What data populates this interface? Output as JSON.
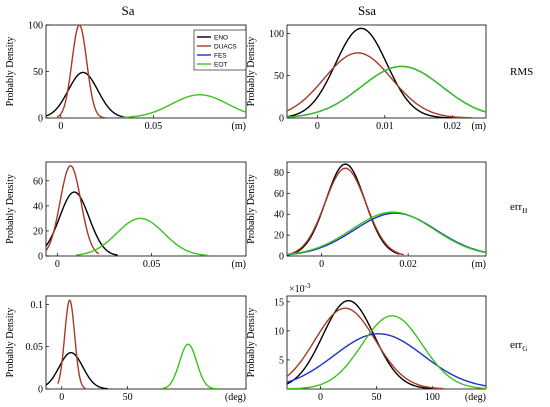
{
  "figure": {
    "col_titles": [
      "Sa",
      "Ssa"
    ],
    "row_labels": [
      {
        "main": "RMS",
        "sub": ""
      },
      {
        "main": "err",
        "sub": "H"
      },
      {
        "main": "err",
        "sub": "G"
      }
    ],
    "y_label": "Probably  Density"
  },
  "colors": {
    "ENO": "#000000",
    "DUACS": "#a83a24",
    "FES": "#1f2fd0",
    "EOT": "#38c41c"
  },
  "chart_data": [
    {
      "id": "sa-rms",
      "type": "line",
      "row": 0,
      "col": 0,
      "xunit": "(m)",
      "xlim": [
        -0.008,
        0.1
      ],
      "ylim": [
        0,
        100
      ],
      "xticks": [
        {
          "v": 0,
          "label": "0"
        },
        {
          "v": 0.05,
          "label": "0.05"
        }
      ],
      "yticks": [
        {
          "v": 0,
          "label": "0"
        },
        {
          "v": 50,
          "label": "50"
        },
        {
          "v": 100,
          "label": "100"
        }
      ],
      "legend": {
        "position": "top-right",
        "entries": [
          "ENO",
          "DUACS",
          "FES",
          "EOT"
        ]
      },
      "series": [
        {
          "name": "ENO",
          "mu": 0.012,
          "sigma": 0.008,
          "peak": 49,
          "range": [
            -0.008,
            0.035
          ]
        },
        {
          "name": "DUACS",
          "mu": 0.01,
          "sigma": 0.004,
          "peak": 100,
          "range": [
            -0.002,
            0.024
          ]
        },
        {
          "name": "EOT",
          "mu": 0.075,
          "sigma": 0.015,
          "peak": 25,
          "range": [
            0.03,
            0.1
          ]
        }
      ]
    },
    {
      "id": "ssa-rms",
      "type": "line",
      "row": 0,
      "col": 1,
      "xunit": "(m)",
      "xlim": [
        -0.0045,
        0.025
      ],
      "ylim": [
        0,
        110
      ],
      "xticks": [
        {
          "v": 0,
          "label": "0"
        },
        {
          "v": 0.01,
          "label": "0.01"
        },
        {
          "v": 0.02,
          "label": "0.02"
        }
      ],
      "yticks": [
        {
          "v": 0,
          "label": "0"
        },
        {
          "v": 50,
          "label": "50"
        },
        {
          "v": 100,
          "label": "100"
        }
      ],
      "series": [
        {
          "name": "ENO",
          "mu": 0.0065,
          "sigma": 0.0038,
          "peak": 106,
          "range": [
            -0.0045,
            0.02
          ]
        },
        {
          "name": "DUACS",
          "mu": 0.006,
          "sigma": 0.005,
          "peak": 77,
          "range": [
            -0.0045,
            0.023
          ]
        },
        {
          "name": "FES",
          "mu": 0.0125,
          "sigma": 0.006,
          "peak": 61,
          "range": [
            -0.0045,
            0.025
          ]
        },
        {
          "name": "EOT",
          "mu": 0.0125,
          "sigma": 0.006,
          "peak": 61,
          "range": [
            -0.0045,
            0.025
          ]
        }
      ]
    },
    {
      "id": "sa-errh",
      "type": "line",
      "row": 1,
      "col": 0,
      "xunit": "(m)",
      "xlim": [
        -0.006,
        0.1
      ],
      "ylim": [
        0,
        75
      ],
      "xticks": [
        {
          "v": 0,
          "label": "0"
        },
        {
          "v": 0.05,
          "label": "0.05"
        }
      ],
      "yticks": [
        {
          "v": 0,
          "label": "0"
        },
        {
          "v": 20,
          "label": "20"
        },
        {
          "v": 40,
          "label": "40"
        },
        {
          "v": 60,
          "label": "60"
        }
      ],
      "series": [
        {
          "name": "ENO",
          "mu": 0.009,
          "sigma": 0.0078,
          "peak": 51,
          "range": [
            -0.006,
            0.032
          ]
        },
        {
          "name": "DUACS",
          "mu": 0.007,
          "sigma": 0.0055,
          "peak": 72,
          "range": [
            -0.006,
            0.022
          ]
        },
        {
          "name": "EOT",
          "mu": 0.044,
          "sigma": 0.0125,
          "peak": 30,
          "range": [
            0.01,
            0.08
          ]
        }
      ]
    },
    {
      "id": "ssa-errh",
      "type": "line",
      "row": 1,
      "col": 1,
      "xunit": "(m)",
      "xlim": [
        -0.008,
        0.038
      ],
      "ylim": [
        0,
        90
      ],
      "xticks": [
        {
          "v": 0,
          "label": "0"
        },
        {
          "v": 0.02,
          "label": "0.02"
        }
      ],
      "yticks": [
        {
          "v": 0,
          "label": "0"
        },
        {
          "v": 20,
          "label": "20"
        },
        {
          "v": 40,
          "label": "40"
        },
        {
          "v": 60,
          "label": "60"
        },
        {
          "v": 80,
          "label": "80"
        }
      ],
      "series": [
        {
          "name": "ENO",
          "mu": 0.0055,
          "sigma": 0.0045,
          "peak": 88,
          "range": [
            -0.008,
            0.018
          ]
        },
        {
          "name": "DUACS",
          "mu": 0.0055,
          "sigma": 0.0047,
          "peak": 84,
          "range": [
            -0.008,
            0.019
          ]
        },
        {
          "name": "FES",
          "mu": 0.017,
          "sigma": 0.0095,
          "peak": 41,
          "range": [
            -0.008,
            0.038
          ]
        },
        {
          "name": "EOT",
          "mu": 0.0165,
          "sigma": 0.0095,
          "peak": 42,
          "range": [
            -0.008,
            0.038
          ]
        }
      ]
    },
    {
      "id": "sa-errg",
      "type": "line",
      "row": 2,
      "col": 0,
      "xunit": "(deg)",
      "xlim": [
        -12,
        140
      ],
      "ylim": [
        0,
        0.11
      ],
      "xticks": [
        {
          "v": 0,
          "label": "0"
        },
        {
          "v": 50,
          "label": "50"
        }
      ],
      "yticks": [
        {
          "v": 0,
          "label": "0"
        },
        {
          "v": 0.05,
          "label": "0.05"
        },
        {
          "v": 0.1,
          "label": "0.1"
        }
      ],
      "series": [
        {
          "name": "ENO",
          "mu": 7,
          "sigma": 9,
          "peak": 0.043,
          "range": [
            -12,
            35
          ]
        },
        {
          "name": "DUACS",
          "mu": 6,
          "sigma": 3.8,
          "peak": 0.105,
          "range": [
            -3,
            18
          ]
        },
        {
          "name": "EOT",
          "mu": 96,
          "sigma": 6.5,
          "peak": 0.053,
          "range": [
            75,
            120
          ]
        }
      ]
    },
    {
      "id": "ssa-errg",
      "type": "line",
      "row": 2,
      "col": 1,
      "xunit": "(deg)",
      "xlim": [
        -30,
        148
      ],
      "ylim": [
        0,
        0.016
      ],
      "y_exponent": "×10",
      "y_exponent_power": "-3",
      "xticks": [
        {
          "v": 0,
          "label": "0"
        },
        {
          "v": 50,
          "label": "50"
        },
        {
          "v": 100,
          "label": "100"
        }
      ],
      "yticks": [
        {
          "v": 0.005,
          "label": "5"
        },
        {
          "v": 0.01,
          "label": "10"
        },
        {
          "v": 0.015,
          "label": "15"
        }
      ],
      "series": [
        {
          "name": "ENO",
          "mu": 25,
          "sigma": 23,
          "peak": 0.0152,
          "range": [
            -30,
            100
          ]
        },
        {
          "name": "DUACS",
          "mu": 22,
          "sigma": 27,
          "peak": 0.0139,
          "range": [
            -30,
            110
          ]
        },
        {
          "name": "FES",
          "mu": 52,
          "sigma": 40,
          "peak": 0.0095,
          "range": [
            -30,
            148
          ]
        },
        {
          "name": "EOT",
          "mu": 64,
          "sigma": 27,
          "peak": 0.0126,
          "range": [
            -30,
            148
          ]
        }
      ]
    }
  ]
}
